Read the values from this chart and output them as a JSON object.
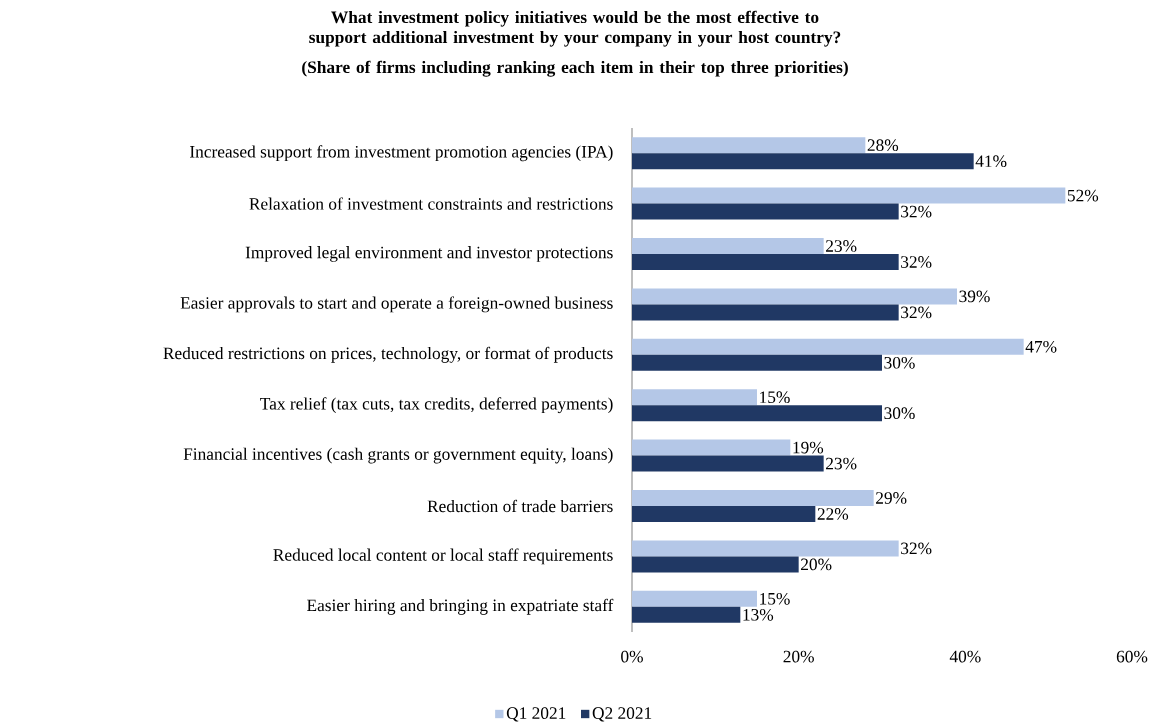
{
  "chart_data": {
    "type": "bar",
    "orientation": "horizontal",
    "title": "What investment policy initiatives would be the most effective to support additional investment by your company in your host country?",
    "subtitle": "(Share of firms including ranking each item in their top three priorities)",
    "categories": [
      "Increased support from investment promotion agencies (IPA)",
      "Relaxation of investment constraints and restrictions",
      "Improved legal environment and investor protections",
      "Easier approvals to start and operate a foreign-owned business",
      "Reduced restrictions on prices, technology, or format of products",
      "Tax relief (tax cuts, tax credits, deferred payments)",
      "Financial incentives (cash grants or government equity, loans)",
      "Reduction of trade barriers",
      "Reduced local content or local staff requirements",
      "Easier hiring and bringing in expatriate staff"
    ],
    "series": [
      {
        "name": "Q1 2021",
        "color": "#b4c7e7",
        "values": [
          28,
          52,
          23,
          39,
          47,
          15,
          19,
          29,
          32,
          15
        ],
        "value_labels": [
          "28%",
          "52%",
          "23%",
          "39%",
          "47%",
          "15%",
          "19%",
          "29%",
          "32%",
          "15%"
        ]
      },
      {
        "name": "Q2 2021",
        "color": "#203864",
        "values": [
          41,
          32,
          32,
          32,
          30,
          30,
          23,
          22,
          20,
          13
        ],
        "value_labels": [
          "41%",
          "32%",
          "32%",
          "32%",
          "30%",
          "30%",
          "23%",
          "22%",
          "20%",
          "13%"
        ]
      }
    ],
    "xlim": [
      0,
      60
    ],
    "xticks": [
      {
        "value": 0,
        "label": "0%"
      },
      {
        "value": 20,
        "label": "20%"
      },
      {
        "value": 40,
        "label": "40%"
      },
      {
        "value": 60,
        "label": "60%"
      }
    ],
    "grid": false,
    "legend": "bottom"
  }
}
